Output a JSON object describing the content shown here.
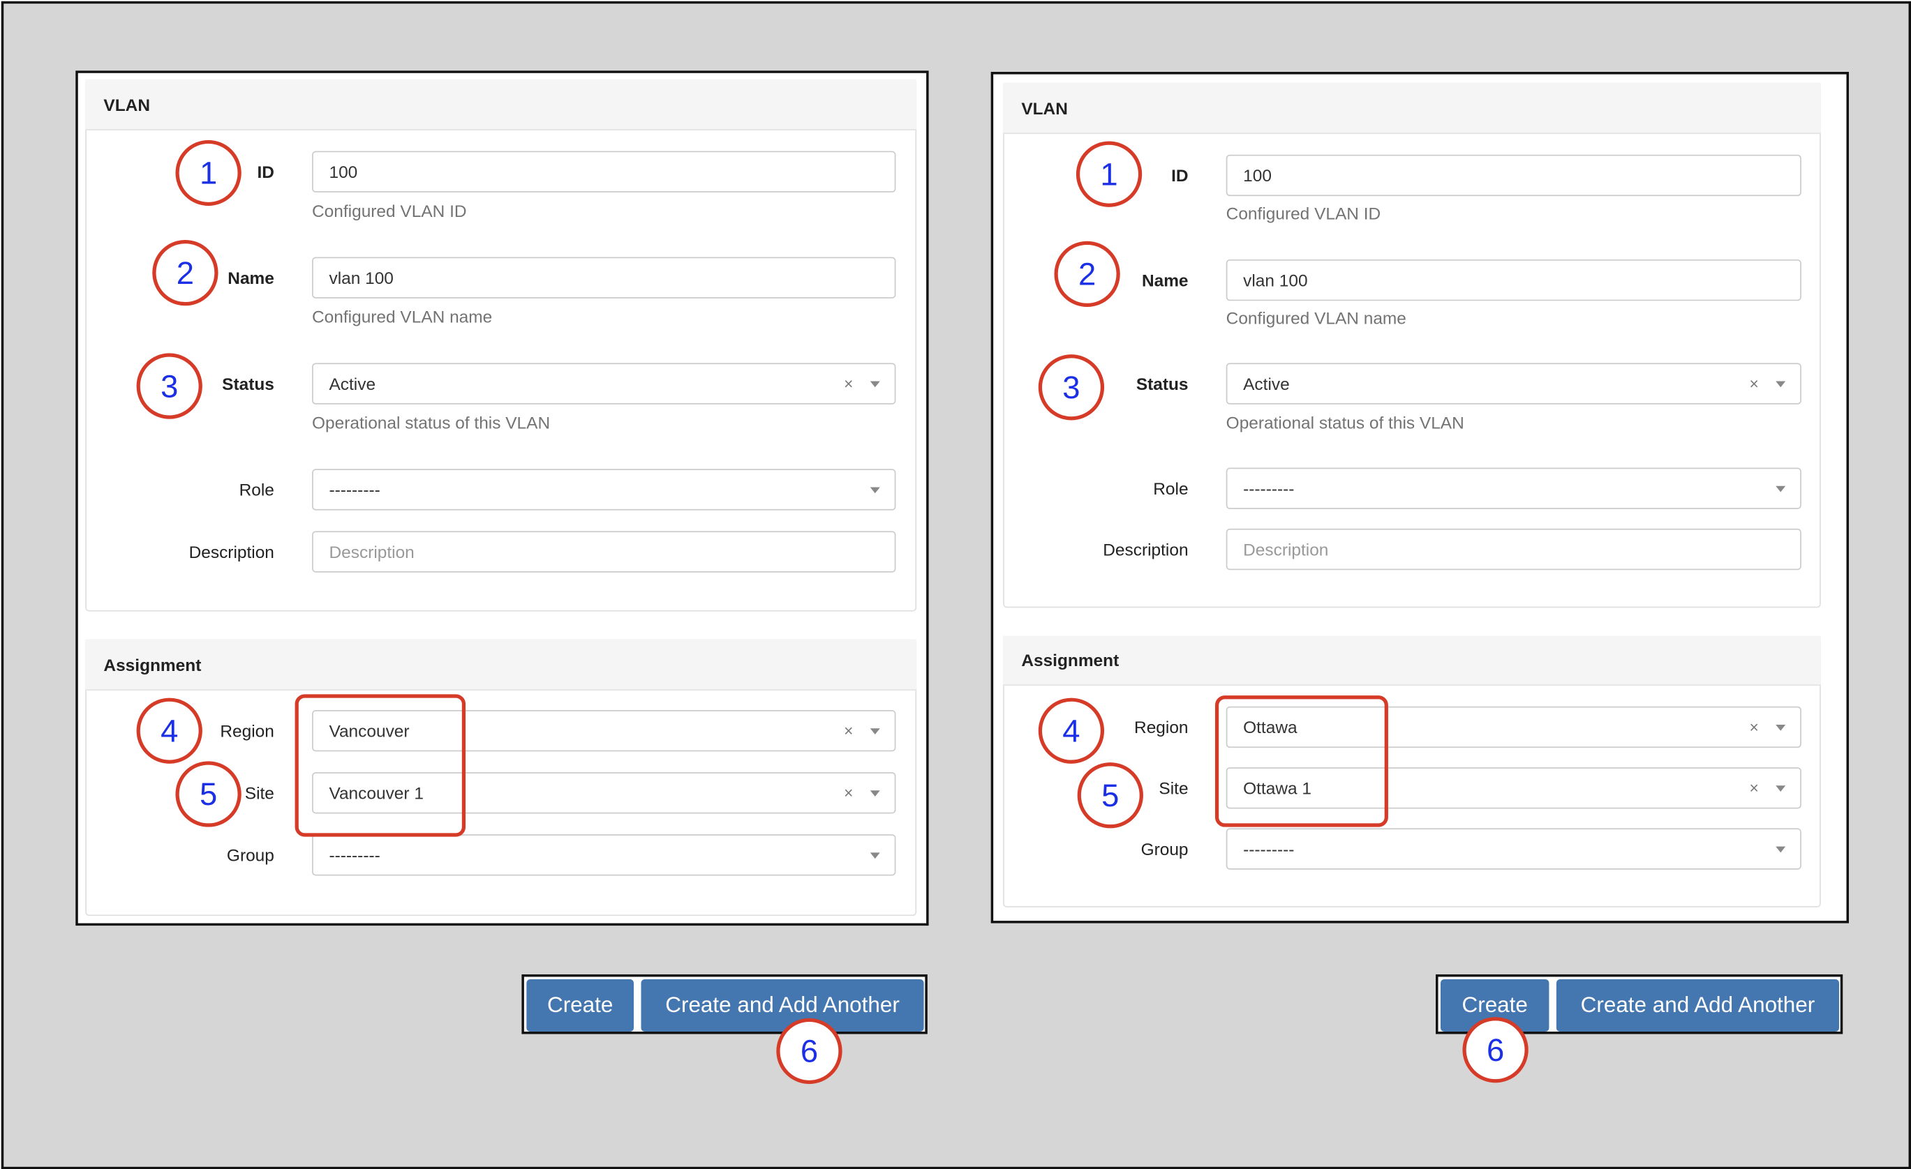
{
  "colors": {
    "annotation_circle": "#d63b28",
    "annotation_number": "#1a2fe6",
    "button": "#4477b0",
    "background": "#d6d6d6"
  },
  "forms": [
    {
      "vlan_section": "VLAN",
      "fields": {
        "id": {
          "label": "ID",
          "value": "100",
          "help": "Configured VLAN ID"
        },
        "name": {
          "label": "Name",
          "value": "vlan 100",
          "help": "Configured VLAN name"
        },
        "status": {
          "label": "Status",
          "value": "Active",
          "help": "Operational status of this VLAN",
          "clear": "×"
        },
        "role": {
          "label": "Role",
          "value": "---------"
        },
        "description": {
          "label": "Description",
          "placeholder": "Description"
        }
      },
      "assignment_section": "Assignment",
      "assignment": {
        "region": {
          "label": "Region",
          "value": "Vancouver",
          "clear": "×"
        },
        "site": {
          "label": "Site",
          "value": "Vancouver 1",
          "clear": "×"
        },
        "group": {
          "label": "Group",
          "value": "---------"
        }
      },
      "buttons": {
        "create": "Create",
        "create_another": "Create and Add Another"
      },
      "annotations": [
        "1",
        "2",
        "3",
        "4",
        "5",
        "6"
      ]
    },
    {
      "vlan_section": "VLAN",
      "fields": {
        "id": {
          "label": "ID",
          "value": "100",
          "help": "Configured VLAN ID"
        },
        "name": {
          "label": "Name",
          "value": "vlan 100",
          "help": "Configured VLAN name"
        },
        "status": {
          "label": "Status",
          "value": "Active",
          "help": "Operational status of this VLAN",
          "clear": "×"
        },
        "role": {
          "label": "Role",
          "value": "---------"
        },
        "description": {
          "label": "Description",
          "placeholder": "Description"
        }
      },
      "assignment_section": "Assignment",
      "assignment": {
        "region": {
          "label": "Region",
          "value": "Ottawa",
          "clear": "×"
        },
        "site": {
          "label": "Site",
          "value": "Ottawa 1",
          "clear": "×"
        },
        "group": {
          "label": "Group",
          "value": "---------"
        }
      },
      "buttons": {
        "create": "Create",
        "create_another": "Create and Add Another"
      },
      "annotations": [
        "1",
        "2",
        "3",
        "4",
        "5",
        "6"
      ]
    }
  ]
}
